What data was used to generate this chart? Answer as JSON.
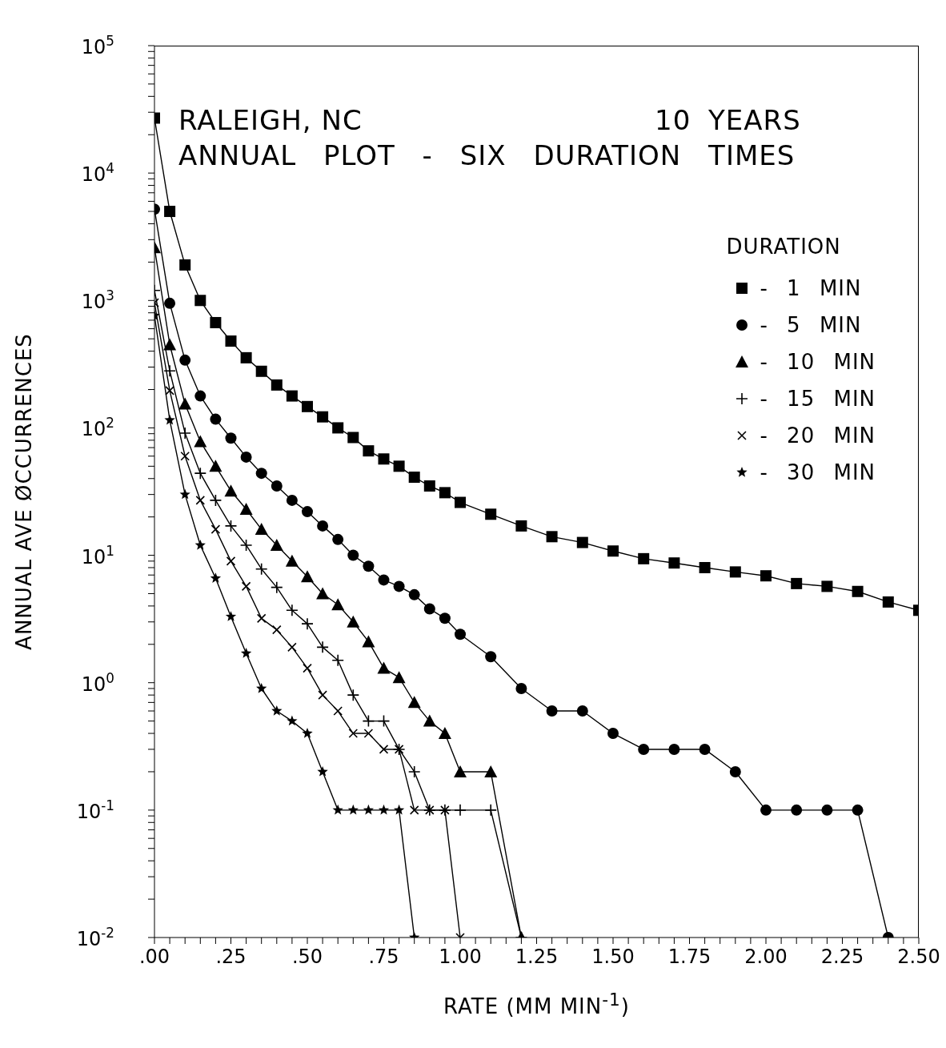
{
  "chart_data": {
    "type": "line",
    "title": "RALEIGH, NC",
    "subtitle": "ANNUAL PLOT - SIX DURATION TIMES",
    "annotations": [
      "10 YEARS"
    ],
    "xlabel": "RATE (MM MIN$^{-1}$)",
    "ylabel": "ANNUAL AVE ØCCURRENCES",
    "legend_title": "DURATION",
    "legend": "top right",
    "log": "y",
    "line_style": "solid",
    "xlim": [
      0,
      2.5
    ],
    "ylim": [
      0.01,
      100000
    ],
    "xticks": [
      {
        "value": 0,
        "label": ".00"
      },
      {
        "value": 0.25,
        "label": ".25"
      },
      {
        "value": 0.5,
        "label": ".50"
      },
      {
        "value": 0.75,
        "label": ".75"
      },
      {
        "value": 1,
        "label": "1.00"
      },
      {
        "value": 1.25,
        "label": "1.25"
      },
      {
        "value": 1.5,
        "label": "1.50"
      },
      {
        "value": 1.75,
        "label": "1.75"
      },
      {
        "value": 2,
        "label": "2.00"
      },
      {
        "value": 2.25,
        "label": "2.25"
      },
      {
        "value": 2.5,
        "label": "2.50"
      },
      {
        "value": 0.05,
        "label": null
      },
      {
        "value": 0.1,
        "label": null
      },
      {
        "value": 0.15,
        "label": null
      },
      {
        "value": 0.2,
        "label": null
      },
      {
        "value": 0.3,
        "label": null
      },
      {
        "value": 0.35,
        "label": null
      },
      {
        "value": 0.4,
        "label": null
      },
      {
        "value": 0.45,
        "label": null
      },
      {
        "value": 0.55,
        "label": null
      },
      {
        "value": 0.6,
        "label": null
      },
      {
        "value": 0.65,
        "label": null
      },
      {
        "value": 0.7,
        "label": null
      },
      {
        "value": 0.8,
        "label": null
      },
      {
        "value": 0.85,
        "label": null
      },
      {
        "value": 0.9,
        "label": null
      },
      {
        "value": 0.95,
        "label": null
      },
      {
        "value": 1.05,
        "label": null
      },
      {
        "value": 1.1,
        "label": null
      },
      {
        "value": 1.15,
        "label": null
      },
      {
        "value": 1.2,
        "label": null
      },
      {
        "value": 1.3,
        "label": null
      },
      {
        "value": 1.35,
        "label": null
      },
      {
        "value": 1.4,
        "label": null
      },
      {
        "value": 1.45,
        "label": null
      },
      {
        "value": 1.55,
        "label": null
      },
      {
        "value": 1.6,
        "label": null
      },
      {
        "value": 1.65,
        "label": null
      },
      {
        "value": 1.7,
        "label": null
      },
      {
        "value": 1.8,
        "label": null
      },
      {
        "value": 1.85,
        "label": null
      },
      {
        "value": 1.9,
        "label": null
      },
      {
        "value": 1.95,
        "label": null
      },
      {
        "value": 2.05,
        "label": null
      },
      {
        "value": 2.1,
        "label": null
      },
      {
        "value": 2.15,
        "label": null
      },
      {
        "value": 2.2,
        "label": null
      },
      {
        "value": 2.3,
        "label": null
      },
      {
        "value": 2.35,
        "label": null
      },
      {
        "value": 2.4,
        "label": null
      },
      {
        "value": 2.45,
        "label": null
      }
    ],
    "yticks": [
      {
        "value": 0.01,
        "label": "10$^{-2}$"
      },
      {
        "value": 0.1,
        "label": "10$^{-1}$"
      },
      {
        "value": 1,
        "label": "10$^{0}$"
      },
      {
        "value": 10,
        "label": "10$^{1}$"
      },
      {
        "value": 100,
        "label": "10$^{2}$"
      },
      {
        "value": 1000,
        "label": "10$^{3}$"
      },
      {
        "value": 10000,
        "label": "10$^{4}$"
      },
      {
        "value": 100000,
        "label": "10$^{5}$"
      },
      {
        "value": 0.02,
        "label": null
      },
      {
        "value": 0.03,
        "label": null
      },
      {
        "value": 0.04,
        "label": null
      },
      {
        "value": 0.05,
        "label": null
      },
      {
        "value": 0.06,
        "label": null
      },
      {
        "value": 0.07,
        "label": null
      },
      {
        "value": 0.08,
        "label": null
      },
      {
        "value": 0.09,
        "label": null
      },
      {
        "value": 0.2,
        "label": null
      },
      {
        "value": 0.3,
        "label": null
      },
      {
        "value": 0.4,
        "label": null
      },
      {
        "value": 0.5,
        "label": null
      },
      {
        "value": 0.6,
        "label": null
      },
      {
        "value": 0.7,
        "label": null
      },
      {
        "value": 0.8,
        "label": null
      },
      {
        "value": 0.9,
        "label": null
      },
      {
        "value": 2,
        "label": null
      },
      {
        "value": 3,
        "label": null
      },
      {
        "value": 4,
        "label": null
      },
      {
        "value": 5,
        "label": null
      },
      {
        "value": 6,
        "label": null
      },
      {
        "value": 7,
        "label": null
      },
      {
        "value": 8,
        "label": null
      },
      {
        "value": 9,
        "label": null
      },
      {
        "value": 20,
        "label": null
      },
      {
        "value": 30,
        "label": null
      },
      {
        "value": 40,
        "label": null
      },
      {
        "value": 50,
        "label": null
      },
      {
        "value": 60,
        "label": null
      },
      {
        "value": 70,
        "label": null
      },
      {
        "value": 80,
        "label": null
      },
      {
        "value": 90,
        "label": null
      },
      {
        "value": 200,
        "label": null
      },
      {
        "value": 300,
        "label": null
      },
      {
        "value": 400,
        "label": null
      },
      {
        "value": 500,
        "label": null
      },
      {
        "value": 600,
        "label": null
      },
      {
        "value": 700,
        "label": null
      },
      {
        "value": 800,
        "label": null
      },
      {
        "value": 900,
        "label": null
      },
      {
        "value": 2000,
        "label": null
      },
      {
        "value": 3000,
        "label": null
      },
      {
        "value": 4000,
        "label": null
      },
      {
        "value": 5000,
        "label": null
      },
      {
        "value": 6000,
        "label": null
      },
      {
        "value": 7000,
        "label": null
      },
      {
        "value": 8000,
        "label": null
      },
      {
        "value": 9000,
        "label": null
      },
      {
        "value": 20000,
        "label": null
      },
      {
        "value": 30000,
        "label": null
      },
      {
        "value": 40000,
        "label": null
      },
      {
        "value": 50000,
        "label": null
      },
      {
        "value": 60000,
        "label": null
      },
      {
        "value": 70000,
        "label": null
      },
      {
        "value": 80000,
        "label": null
      },
      {
        "value": 90000,
        "label": null
      }
    ],
    "series": [
      {
        "name": "- 1 MIN",
        "color": "#000000",
        "marker": "square",
        "x": [
          0,
          0.05,
          0.1,
          0.15,
          0.2,
          0.25,
          0.3,
          0.35,
          0.4,
          0.45,
          0.5,
          0.55,
          0.6,
          0.65,
          0.7,
          0.75,
          0.8,
          0.85,
          0.9,
          0.95,
          1.0,
          1.1,
          1.2,
          1.3,
          1.4,
          1.5,
          1.6,
          1.7,
          1.8,
          1.9,
          2.0,
          2.1,
          2.2,
          2.3,
          2.4,
          2.5
        ],
        "values": [
          27000,
          5000,
          1900,
          1000,
          670,
          480,
          355,
          278,
          217,
          178,
          147,
          122,
          100,
          84,
          66,
          57,
          50,
          41,
          35,
          31,
          26,
          21,
          17,
          14,
          12.6,
          10.8,
          9.4,
          8.7,
          8.0,
          7.4,
          6.9,
          6.0,
          5.7,
          5.2,
          4.3,
          3.7
        ]
      },
      {
        "name": "- 5 MIN",
        "color": "#000000",
        "marker": "circle",
        "x": [
          0,
          0.05,
          0.1,
          0.15,
          0.2,
          0.25,
          0.3,
          0.35,
          0.4,
          0.45,
          0.5,
          0.55,
          0.6,
          0.65,
          0.7,
          0.75,
          0.8,
          0.85,
          0.9,
          0.95,
          1.0,
          1.1,
          1.2,
          1.3,
          1.4,
          1.5,
          1.6,
          1.7,
          1.8,
          1.9,
          2.0,
          2.1,
          2.2,
          2.3,
          2.4
        ],
        "values": [
          5200,
          950,
          340,
          178,
          117,
          83,
          59,
          44,
          35,
          27,
          22,
          17,
          13.3,
          10,
          8.2,
          6.4,
          5.7,
          4.9,
          3.8,
          3.2,
          2.4,
          1.6,
          0.9,
          0.6,
          0.6,
          0.4,
          0.3,
          0.3,
          0.3,
          0.2,
          0.1,
          0.1,
          0.1,
          0.1,
          0.01
        ]
      },
      {
        "name": "- 10 MIN",
        "color": "#000000",
        "marker": "triangle",
        "x": [
          0,
          0.05,
          0.1,
          0.15,
          0.2,
          0.25,
          0.3,
          0.35,
          0.4,
          0.45,
          0.5,
          0.55,
          0.6,
          0.65,
          0.7,
          0.75,
          0.8,
          0.85,
          0.9,
          0.95,
          1.0,
          1.1,
          1.2
        ],
        "values": [
          2600,
          450,
          154,
          78,
          50,
          32,
          23,
          16,
          12,
          9.0,
          6.8,
          5.0,
          4.1,
          3.0,
          2.1,
          1.3,
          1.1,
          0.7,
          0.5,
          0.4,
          0.2,
          0.2,
          0.01
        ]
      },
      {
        "name": "- 15 MIN",
        "color": "#000000",
        "marker": "plus",
        "x": [
          0,
          0.05,
          0.1,
          0.15,
          0.2,
          0.25,
          0.3,
          0.35,
          0.4,
          0.45,
          0.5,
          0.55,
          0.6,
          0.65,
          0.7,
          0.75,
          0.8,
          0.85,
          0.9,
          0.95,
          1.0,
          1.1,
          1.2
        ],
        "values": [
          1200,
          280,
          91,
          44,
          27,
          17,
          12,
          7.8,
          5.6,
          3.7,
          2.9,
          1.9,
          1.5,
          0.8,
          0.5,
          0.5,
          0.3,
          0.2,
          0.1,
          0.1,
          0.1,
          0.1,
          0.01
        ]
      },
      {
        "name": "- 20 MIN",
        "color": "#000000",
        "marker": "cross",
        "x": [
          0,
          0.05,
          0.1,
          0.15,
          0.2,
          0.25,
          0.3,
          0.35,
          0.4,
          0.45,
          0.5,
          0.55,
          0.6,
          0.65,
          0.7,
          0.75,
          0.8,
          0.85,
          0.9,
          0.95,
          1.0
        ],
        "values": [
          960,
          196,
          60,
          27,
          16,
          9.0,
          5.7,
          3.2,
          2.6,
          1.9,
          1.3,
          0.8,
          0.6,
          0.4,
          0.4,
          0.3,
          0.3,
          0.1,
          0.1,
          0.1,
          0.01
        ]
      },
      {
        "name": "- 30 MIN",
        "color": "#000000",
        "marker": "star",
        "x": [
          0,
          0.05,
          0.1,
          0.15,
          0.2,
          0.25,
          0.3,
          0.35,
          0.4,
          0.45,
          0.5,
          0.55,
          0.6,
          0.65,
          0.7,
          0.75,
          0.8,
          0.85
        ],
        "values": [
          760,
          115,
          30,
          12,
          6.6,
          3.3,
          1.7,
          0.9,
          0.6,
          0.5,
          0.4,
          0.2,
          0.1,
          0.1,
          0.1,
          0.1,
          0.1,
          0.01
        ]
      }
    ]
  }
}
